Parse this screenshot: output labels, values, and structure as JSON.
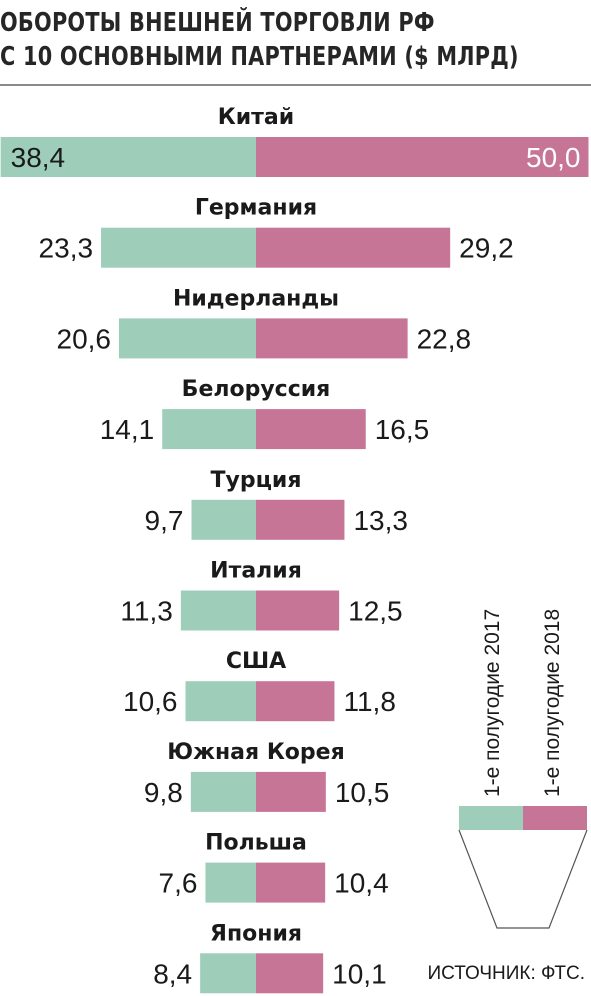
{
  "title": {
    "line1": "ОБОРОТЫ ВНЕШНЕЙ ТОРГОВЛИ РФ",
    "line2": "С 10 ОСНОВНЫМИ ПАРТНЕРАМИ ($ МЛРД)"
  },
  "legend": {
    "left_label": "1-е полугодие 2017",
    "right_label": "1-е полугодие 2018",
    "left_color": "#9ecdb9",
    "right_color": "#c77597"
  },
  "source": "ИСТОЧНИК: ФТС.",
  "chart_data": {
    "type": "bar",
    "orientation": "horizontal-butterfly",
    "categories": [
      "Китай",
      "Германия",
      "Нидерланды",
      "Белоруссия",
      "Турция",
      "Италия",
      "США",
      "Южная Корея",
      "Польша",
      "Япония"
    ],
    "series": [
      {
        "name": "1-е полугодие 2017",
        "values": [
          38.4,
          23.3,
          20.6,
          14.1,
          9.7,
          11.3,
          10.6,
          9.8,
          7.6,
          8.4
        ],
        "labels": [
          "38,4",
          "23,3",
          "20,6",
          "14,1",
          "9,7",
          "11,3",
          "10,6",
          "9,8",
          "7,6",
          "8,4"
        ],
        "color": "#9ecdb9"
      },
      {
        "name": "1-е полугодие 2018",
        "values": [
          50.0,
          29.2,
          22.8,
          16.5,
          13.3,
          12.5,
          11.8,
          10.5,
          10.4,
          10.1
        ],
        "labels": [
          "50,0",
          "29,2",
          "22,8",
          "16,5",
          "13,3",
          "12,5",
          "11,8",
          "10,5",
          "10,4",
          "10,1"
        ],
        "color": "#c77597"
      }
    ]
  }
}
